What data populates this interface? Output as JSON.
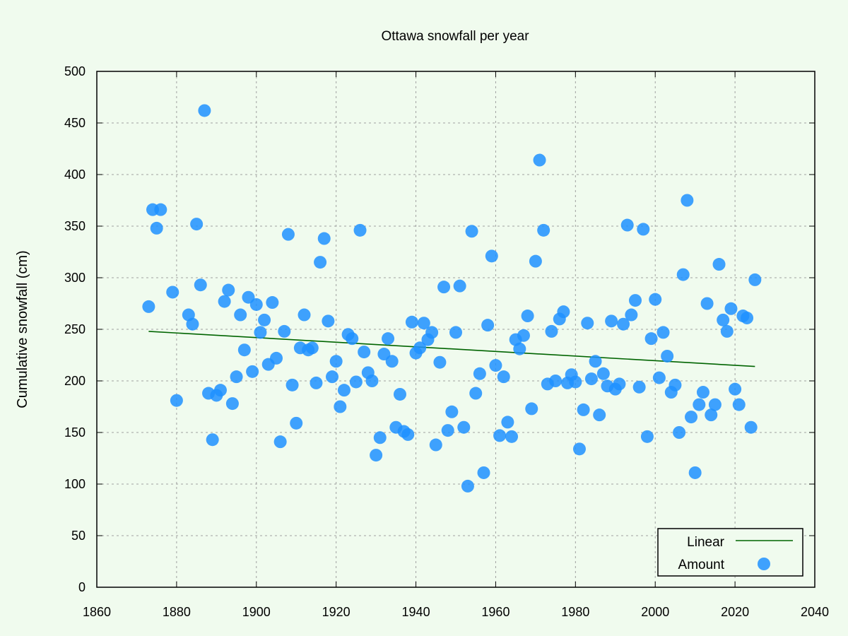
{
  "chart_data": {
    "type": "scatter",
    "title": "Ottawa snowfall per year",
    "xlabel": "",
    "ylabel": "Cumulative snowfall (cm)",
    "xlim": [
      1860,
      2040
    ],
    "ylim": [
      0,
      500
    ],
    "xticks": [
      1860,
      1880,
      1900,
      1920,
      1940,
      1960,
      1980,
      2000,
      2020,
      2040
    ],
    "yticks": [
      0,
      50,
      100,
      150,
      200,
      250,
      300,
      350,
      400,
      450,
      500
    ],
    "grid": true,
    "legend_position": "bottom-right",
    "colors": {
      "points": "#1e90ff",
      "trend": "#006400",
      "background": "#f0fbee"
    },
    "series": [
      {
        "name": "Amount",
        "kind": "scatter",
        "points": [
          [
            1873,
            272
          ],
          [
            1874,
            366
          ],
          [
            1875,
            348
          ],
          [
            1876,
            366
          ],
          [
            1879,
            286
          ],
          [
            1880,
            181
          ],
          [
            1883,
            264
          ],
          [
            1884,
            255
          ],
          [
            1885,
            352
          ],
          [
            1886,
            293
          ],
          [
            1887,
            462
          ],
          [
            1888,
            188
          ],
          [
            1889,
            143
          ],
          [
            1890,
            186
          ],
          [
            1891,
            191
          ],
          [
            1892,
            277
          ],
          [
            1893,
            288
          ],
          [
            1894,
            178
          ],
          [
            1895,
            204
          ],
          [
            1896,
            264
          ],
          [
            1897,
            230
          ],
          [
            1898,
            281
          ],
          [
            1899,
            209
          ],
          [
            1900,
            274
          ],
          [
            1901,
            247
          ],
          [
            1902,
            259
          ],
          [
            1903,
            216
          ],
          [
            1904,
            276
          ],
          [
            1905,
            222
          ],
          [
            1906,
            141
          ],
          [
            1907,
            248
          ],
          [
            1908,
            342
          ],
          [
            1909,
            196
          ],
          [
            1910,
            159
          ],
          [
            1911,
            232
          ],
          [
            1912,
            264
          ],
          [
            1913,
            230
          ],
          [
            1914,
            232
          ],
          [
            1915,
            198
          ],
          [
            1916,
            315
          ],
          [
            1917,
            338
          ],
          [
            1918,
            258
          ],
          [
            1919,
            204
          ],
          [
            1920,
            219
          ],
          [
            1921,
            175
          ],
          [
            1922,
            191
          ],
          [
            1923,
            245
          ],
          [
            1924,
            241
          ],
          [
            1925,
            199
          ],
          [
            1926,
            346
          ],
          [
            1927,
            228
          ],
          [
            1928,
            208
          ],
          [
            1929,
            200
          ],
          [
            1930,
            128
          ],
          [
            1931,
            145
          ],
          [
            1932,
            226
          ],
          [
            1933,
            241
          ],
          [
            1934,
            219
          ],
          [
            1935,
            155
          ],
          [
            1936,
            187
          ],
          [
            1937,
            151
          ],
          [
            1938,
            148
          ],
          [
            1939,
            257
          ],
          [
            1940,
            227
          ],
          [
            1941,
            232
          ],
          [
            1942,
            256
          ],
          [
            1943,
            240
          ],
          [
            1944,
            247
          ],
          [
            1945,
            138
          ],
          [
            1946,
            218
          ],
          [
            1947,
            291
          ],
          [
            1948,
            152
          ],
          [
            1949,
            170
          ],
          [
            1950,
            247
          ],
          [
            1951,
            292
          ],
          [
            1952,
            155
          ],
          [
            1953,
            98
          ],
          [
            1954,
            345
          ],
          [
            1955,
            188
          ],
          [
            1956,
            207
          ],
          [
            1957,
            111
          ],
          [
            1958,
            254
          ],
          [
            1959,
            321
          ],
          [
            1960,
            215
          ],
          [
            1961,
            147
          ],
          [
            1962,
            204
          ],
          [
            1963,
            160
          ],
          [
            1964,
            146
          ],
          [
            1965,
            240
          ],
          [
            1966,
            231
          ],
          [
            1967,
            244
          ],
          [
            1968,
            263
          ],
          [
            1969,
            173
          ],
          [
            1970,
            316
          ],
          [
            1971,
            414
          ],
          [
            1972,
            346
          ],
          [
            1973,
            197
          ],
          [
            1974,
            248
          ],
          [
            1975,
            200
          ],
          [
            1976,
            260
          ],
          [
            1977,
            267
          ],
          [
            1978,
            198
          ],
          [
            1979,
            206
          ],
          [
            1980,
            199
          ],
          [
            1981,
            134
          ],
          [
            1982,
            172
          ],
          [
            1983,
            256
          ],
          [
            1984,
            202
          ],
          [
            1985,
            219
          ],
          [
            1986,
            167
          ],
          [
            1987,
            207
          ],
          [
            1988,
            195
          ],
          [
            1989,
            258
          ],
          [
            1990,
            192
          ],
          [
            1991,
            197
          ],
          [
            1992,
            255
          ],
          [
            1993,
            351
          ],
          [
            1994,
            264
          ],
          [
            1995,
            278
          ],
          [
            1996,
            194
          ],
          [
            1997,
            347
          ],
          [
            1998,
            146
          ],
          [
            1999,
            241
          ],
          [
            2000,
            279
          ],
          [
            2001,
            203
          ],
          [
            2002,
            247
          ],
          [
            2003,
            224
          ],
          [
            2004,
            189
          ],
          [
            2005,
            196
          ],
          [
            2006,
            150
          ],
          [
            2007,
            303
          ],
          [
            2008,
            375
          ],
          [
            2009,
            165
          ],
          [
            2010,
            111
          ],
          [
            2011,
            177
          ],
          [
            2012,
            189
          ],
          [
            2013,
            275
          ],
          [
            2014,
            167
          ],
          [
            2015,
            177
          ],
          [
            2016,
            313
          ],
          [
            2017,
            259
          ],
          [
            2018,
            248
          ],
          [
            2019,
            270
          ],
          [
            2020,
            192
          ],
          [
            2021,
            177
          ],
          [
            2022,
            263
          ],
          [
            2023,
            261
          ],
          [
            2024,
            155
          ],
          [
            2025,
            298
          ]
        ]
      },
      {
        "name": "Linear",
        "kind": "line",
        "points": [
          [
            1873,
            248
          ],
          [
            2025,
            214
          ]
        ]
      }
    ]
  }
}
